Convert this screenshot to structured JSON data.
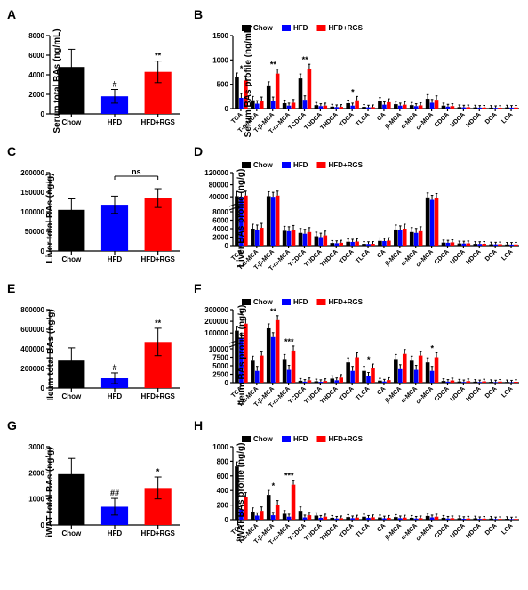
{
  "groups": [
    "Chow",
    "HFD",
    "HFD+RGS"
  ],
  "colors": {
    "Chow": "#000000",
    "HFD": "#0000ff",
    "HFD+RGS": "#ff0000"
  },
  "ba_categories": [
    "TCA",
    "T-α-MCA",
    "T-β-MCA",
    "T-ω-MCA",
    "TCDCA",
    "TUDCA",
    "THDCA",
    "TDCA",
    "TLCA",
    "CA",
    "β-MCA",
    "α-MCA",
    "ω-MCA",
    "CDCA",
    "UDCA",
    "HDCA",
    "DCA",
    "LCA"
  ],
  "panels": {
    "A": {
      "label": "A",
      "ylabel": "Serum total BAs (ng/mL)",
      "ymax": 8000,
      "ytick": 2000,
      "bars": [
        {
          "group": "Chow",
          "val": 4800,
          "err": 1800,
          "sig": ""
        },
        {
          "group": "HFD",
          "val": 1800,
          "err": 700,
          "sig": "#"
        },
        {
          "group": "HFD+RGS",
          "val": 4300,
          "err": 1100,
          "sig": "**"
        }
      ]
    },
    "B": {
      "label": "B",
      "ylabel": "Serum BAs profile (ng/mL)",
      "ymax": 1500,
      "ytick": 500,
      "sig": {
        "0": "*",
        "2": "**",
        "4": "**",
        "7": "*"
      },
      "series": {
        "Chow": [
          640,
          170,
          460,
          110,
          620,
          70,
          40,
          110,
          35,
          150,
          90,
          70,
          200,
          60,
          30,
          25,
          20,
          25
        ],
        "HFD": [
          220,
          100,
          160,
          60,
          180,
          50,
          30,
          60,
          25,
          80,
          60,
          50,
          120,
          40,
          25,
          20,
          15,
          20
        ],
        "HFD+RGS": [
          580,
          160,
          720,
          120,
          820,
          60,
          35,
          170,
          30,
          130,
          80,
          65,
          180,
          50,
          28,
          22,
          18,
          22
        ]
      }
    },
    "C": {
      "label": "C",
      "ylabel": "Liver total BAs (ng/g)",
      "ymax": 200000,
      "ytick": 50000,
      "bracket": {
        "from": 1,
        "to": 2,
        "label": "ns"
      },
      "bars": [
        {
          "group": "Chow",
          "val": 105000,
          "err": 28000,
          "sig": ""
        },
        {
          "group": "HFD",
          "val": 118000,
          "err": 22000,
          "sig": ""
        },
        {
          "group": "HFD+RGS",
          "val": 135000,
          "err": 24000,
          "sig": ""
        }
      ]
    },
    "D": {
      "label": "D",
      "ylabel": "Liver BAs profile (ng/g)",
      "ymax": 120000,
      "ytick": 40000,
      "break_at": 8000,
      "series": {
        "Chow": [
          42000,
          4000,
          42000,
          3500,
          3000,
          2200,
          600,
          900,
          400,
          1100,
          3800,
          3200,
          38000,
          700,
          500,
          400,
          300,
          250
        ],
        "HFD": [
          40000,
          3800,
          40000,
          3400,
          2800,
          2000,
          550,
          850,
          380,
          1050,
          3600,
          3000,
          30000,
          650,
          480,
          380,
          280,
          240
        ],
        "HFD+RGS": [
          44000,
          4200,
          44000,
          3700,
          3200,
          2400,
          650,
          950,
          420,
          1150,
          4000,
          3400,
          36000,
          750,
          520,
          420,
          320,
          260
        ]
      }
    },
    "E": {
      "label": "E",
      "ylabel": "Ileum total BAs (ng/g)",
      "ymax": 800000,
      "ytick": 200000,
      "bars": [
        {
          "group": "Chow",
          "val": 280000,
          "err": 130000,
          "sig": ""
        },
        {
          "group": "HFD",
          "val": 100000,
          "err": 55000,
          "sig": "#"
        },
        {
          "group": "HFD+RGS",
          "val": 470000,
          "err": 140000,
          "sig": "**"
        }
      ]
    },
    "F": {
      "label": "F",
      "ylabel": "Ileum BAs profile (ng/g)",
      "ymax": 300000,
      "ytick": 100000,
      "break_at": 10000,
      "sig": {
        "0": "*",
        "2": "**",
        "3": "***",
        "8": "*",
        "12": "*"
      },
      "series": {
        "Chow": [
          120000,
          6500,
          140000,
          7000,
          550,
          400,
          1200,
          6000,
          3500,
          600,
          7000,
          6500,
          6000,
          500,
          350,
          300,
          250,
          200
        ],
        "HFD": [
          60000,
          3500,
          65000,
          3800,
          300,
          250,
          700,
          3500,
          2000,
          350,
          4000,
          3800,
          3500,
          300,
          200,
          180,
          150,
          120
        ],
        "HFD+RGS": [
          180000,
          8000,
          210000,
          9500,
          700,
          500,
          1500,
          7500,
          4200,
          750,
          8500,
          8000,
          7500,
          650,
          450,
          380,
          320,
          260
        ]
      }
    },
    "G": {
      "label": "G",
      "ylabel": "iWAT total BAs (ng/g)",
      "ymax": 3000,
      "ytick": 1000,
      "bars": [
        {
          "group": "Chow",
          "val": 1950,
          "err": 600,
          "sig": ""
        },
        {
          "group": "HFD",
          "val": 700,
          "err": 320,
          "sig": "##"
        },
        {
          "group": "HFD+RGS",
          "val": 1420,
          "err": 420,
          "sig": "*"
        }
      ]
    },
    "H": {
      "label": "H",
      "ylabel": "iWAT BAs profile (ng/g)",
      "ymax": 1000,
      "ytick": 200,
      "sig": {
        "2": "*",
        "3": "***"
      },
      "series": {
        "Chow": [
          730,
          110,
          340,
          80,
          120,
          55,
          25,
          35,
          40,
          30,
          35,
          25,
          50,
          25,
          20,
          18,
          15,
          12
        ],
        "HFD": [
          140,
          55,
          60,
          40,
          30,
          25,
          15,
          20,
          25,
          18,
          20,
          15,
          30,
          15,
          12,
          10,
          8,
          7
        ],
        "HFD+RGS": [
          310,
          120,
          200,
          480,
          60,
          40,
          20,
          28,
          32,
          25,
          28,
          20,
          40,
          20,
          16,
          14,
          10,
          9
        ]
      }
    }
  }
}
